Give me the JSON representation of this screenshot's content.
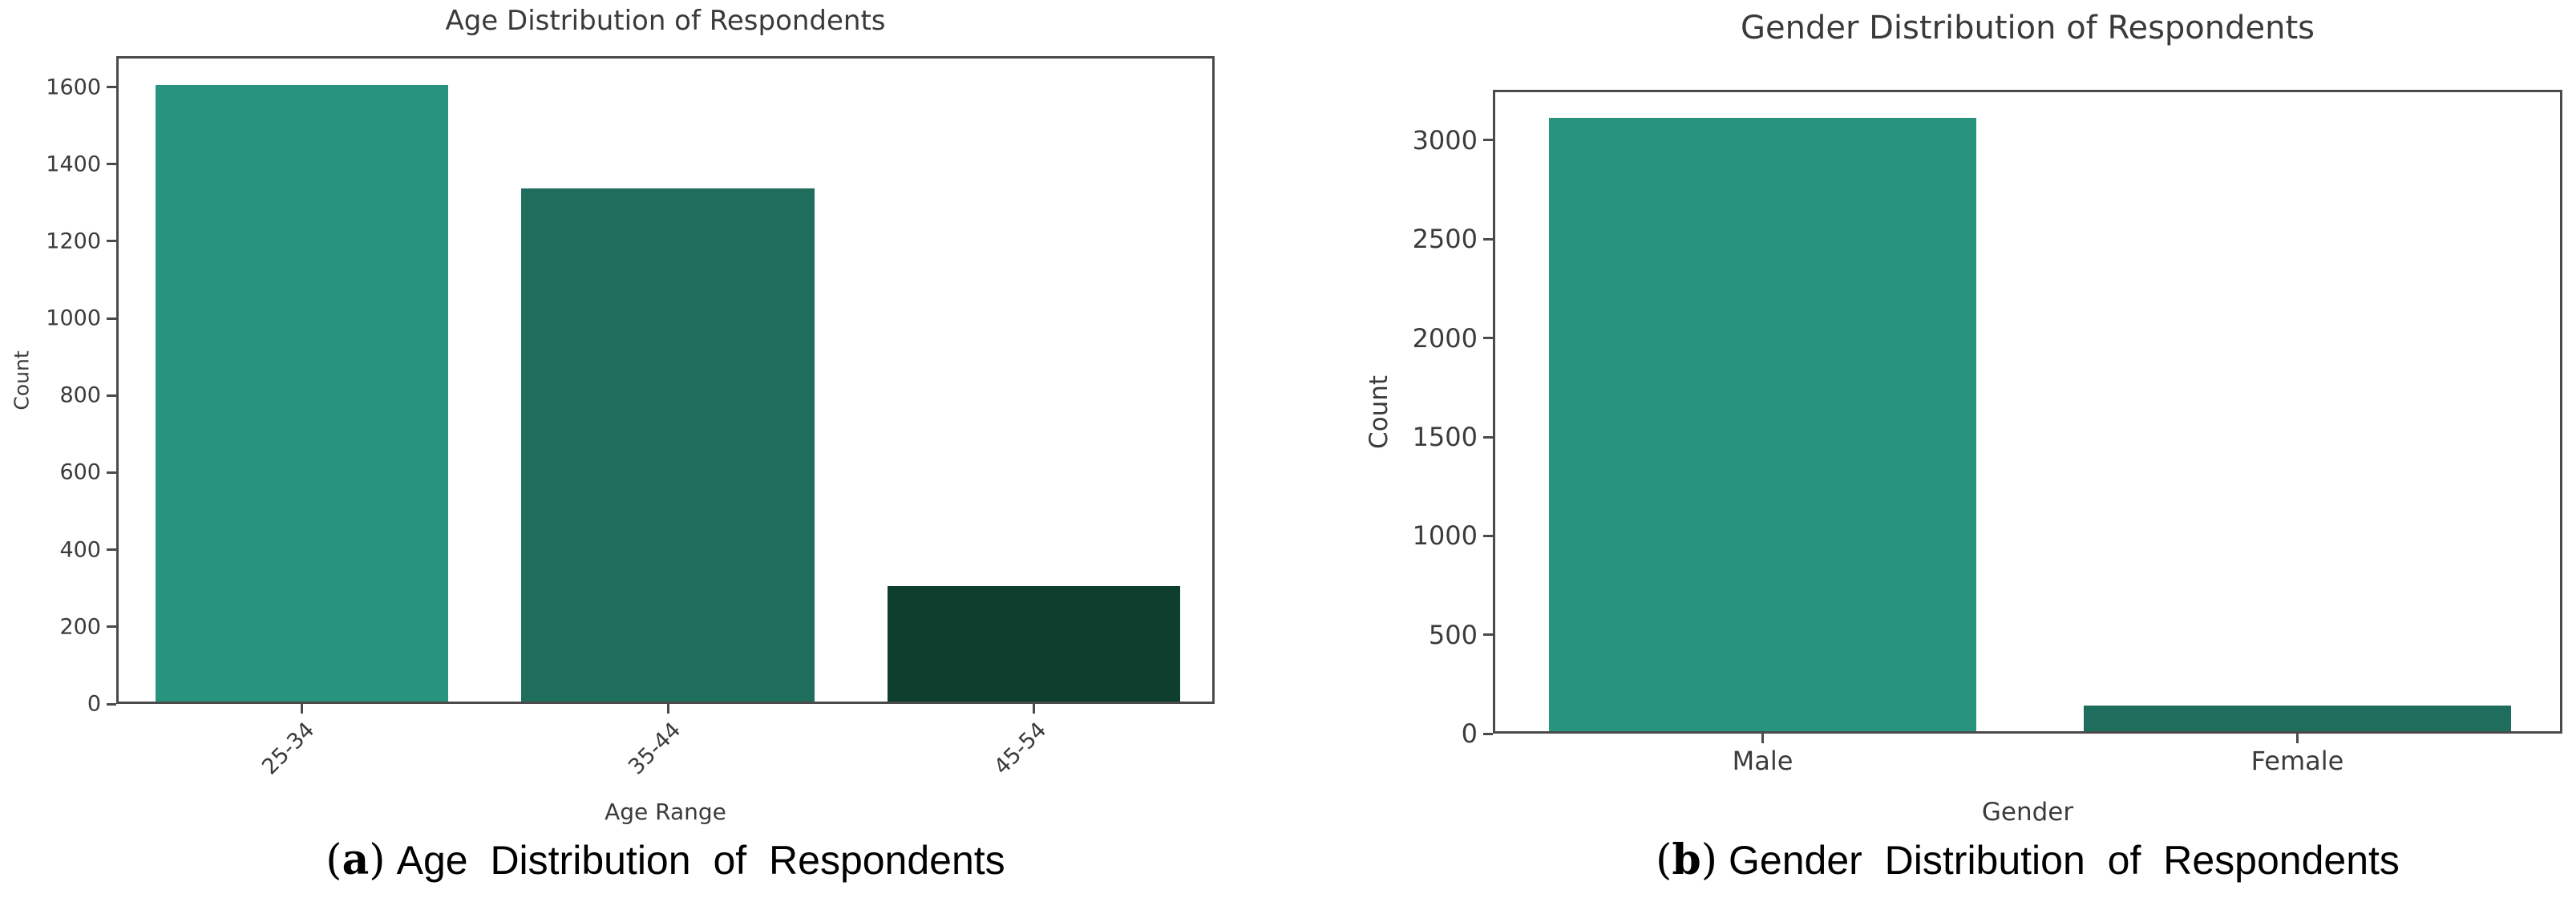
{
  "colors": {
    "spine": "#4a4a4a",
    "tick_label": "#3b3b3b",
    "title": "#3a3a3a",
    "caption": "#000000",
    "teal": "#29947e",
    "mid_green": "#1f6e5d",
    "dark_green": "#0e3e2d"
  },
  "captions": {
    "a": {
      "open": "(",
      "letter": "a",
      "close": ")",
      "text": "Age Distribution of Respondents"
    },
    "b": {
      "open": "(",
      "letter": "b",
      "close": ")",
      "text": "Gender Distribution of Respondents"
    }
  },
  "chart_data": [
    {
      "type": "bar",
      "title": "Age Distribution of Respondents",
      "xlabel": "Age Range",
      "ylabel": "Count",
      "categories": [
        "25-34",
        "35-44",
        "45-54"
      ],
      "values": [
        1600,
        1330,
        300
      ],
      "bar_colors": [
        "#29947e",
        "#1f6e5d",
        "#0e3e2d"
      ],
      "ylim": [
        0,
        1680
      ],
      "yticks": [
        0,
        200,
        400,
        600,
        800,
        1000,
        1200,
        1400,
        1600
      ],
      "grid": false,
      "legend": null,
      "xtick_rotation": 45
    },
    {
      "type": "bar",
      "title": "Gender Distribution of Respondents",
      "xlabel": "Gender",
      "ylabel": "Count",
      "categories": [
        "Male",
        "Female"
      ],
      "values": [
        3100,
        130
      ],
      "bar_colors": [
        "#29947e",
        "#1f6e5d"
      ],
      "ylim": [
        0,
        3255
      ],
      "yticks": [
        0,
        500,
        1000,
        1500,
        2000,
        2500,
        3000
      ],
      "grid": false,
      "legend": null,
      "xtick_rotation": 0
    }
  ]
}
